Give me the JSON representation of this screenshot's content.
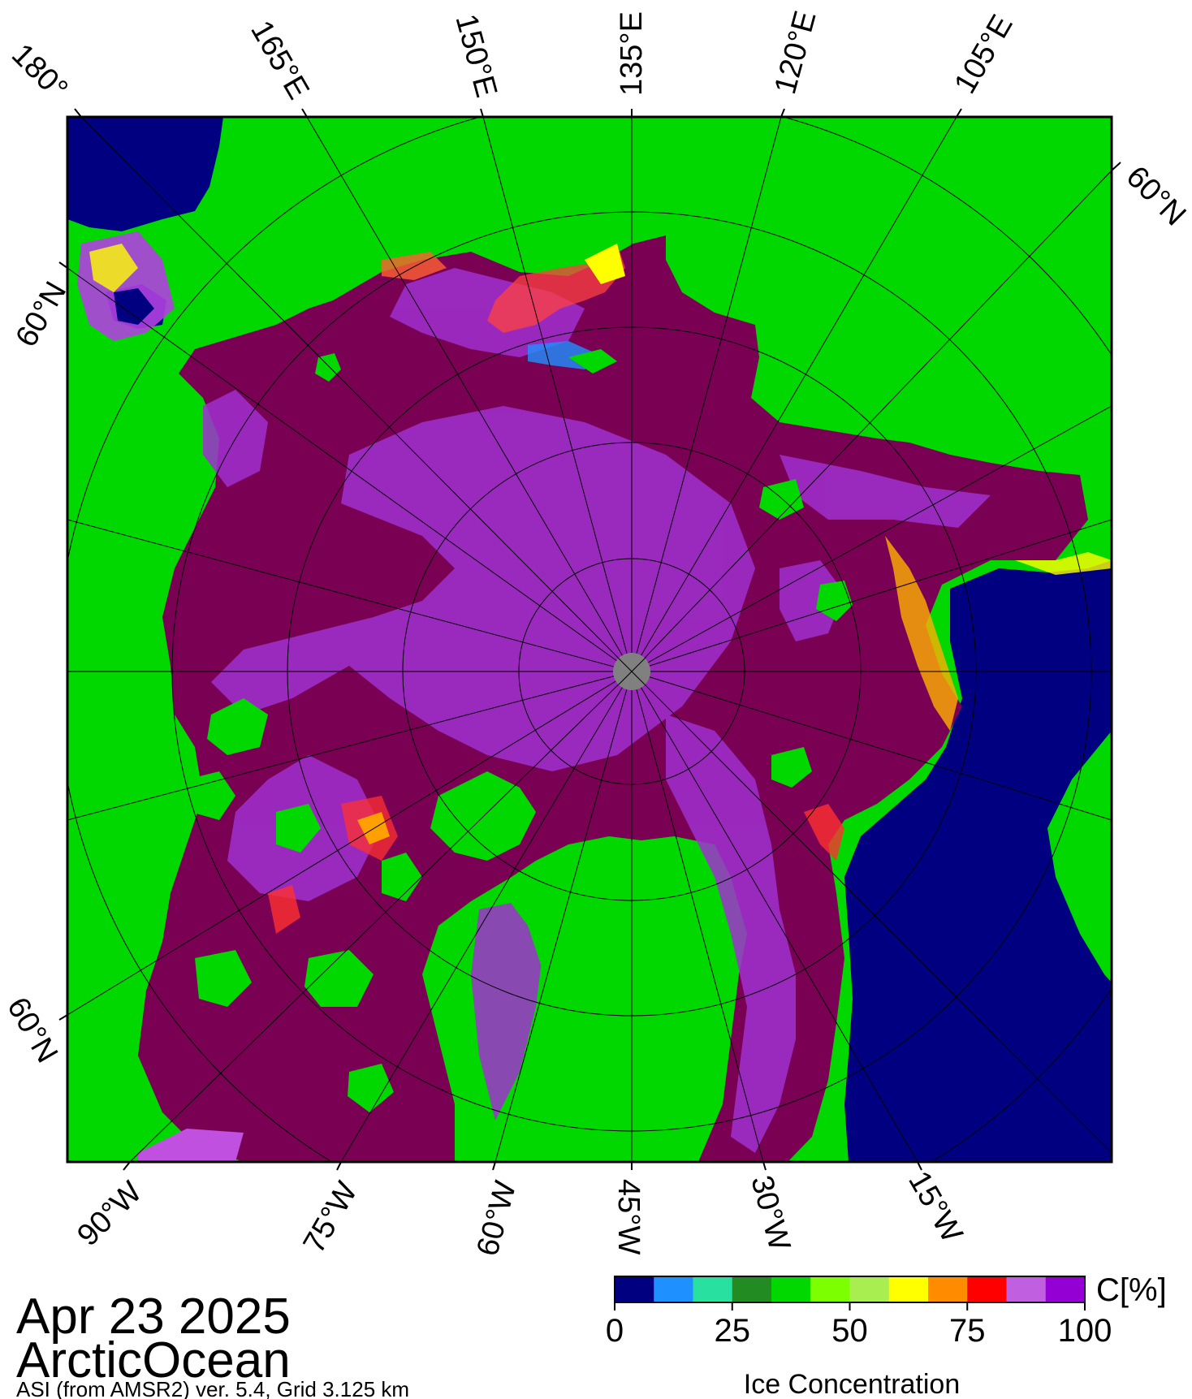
{
  "map": {
    "date": "Apr 23 2025",
    "region": "ArcticOcean",
    "source": "ASI (from AMSR2) ver. 5.4,  Grid 3.125 km",
    "lon_labels_top": [
      "180°",
      "165°E",
      "150°E",
      "135°E",
      "120°E",
      "105°E"
    ],
    "lat_label_top_right": "60°N",
    "lat_label_left_upper": "60°N",
    "lat_label_left_lower": "60°N",
    "lon_labels_bottom": [
      "90°W",
      "75°W",
      "60°W",
      "45°W",
      "30°W",
      "15°W"
    ]
  },
  "colorbar": {
    "unit": "C[%]",
    "title": "Ice Concentration",
    "ticks": [
      "0",
      "25",
      "50",
      "75",
      "100"
    ],
    "colors": [
      "#000080",
      "#1e90ff",
      "#28e0a0",
      "#228b22",
      "#00d800",
      "#7cff00",
      "#a8ee50",
      "#ffff00",
      "#ff8c00",
      "#ff0000",
      "#c060e0",
      "#9400d3"
    ]
  },
  "palette": {
    "land": "#00d800",
    "ocean": "#000080",
    "ice_full": "#7a0054",
    "ice_high": "#8a1ab8",
    "ice_mid": "#b050e0",
    "pole": "#808080"
  }
}
